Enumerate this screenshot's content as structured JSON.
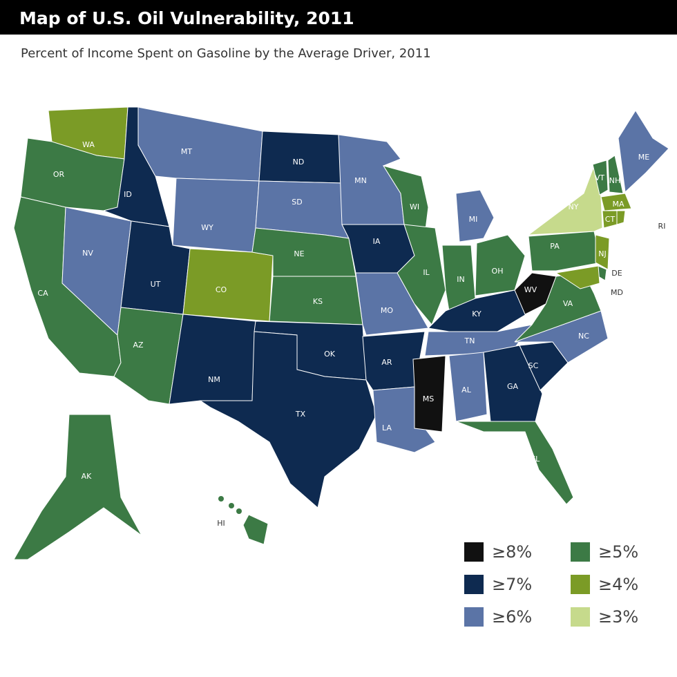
{
  "map": {
    "title": "Map of U.S. Oil Vulnerability, 2011",
    "subtitle": "Percent of Income Spent on Gasoline by the Average Driver, 2011",
    "legend": [
      {
        "label": "≥8%",
        "color": "#111111"
      },
      {
        "label": "≥7%",
        "color": "#0e2a50"
      },
      {
        "label": "≥6%",
        "color": "#5b74a6"
      },
      {
        "label": "≥5%",
        "color": "#3c7a45"
      },
      {
        "label": "≥4%",
        "color": "#7b9b26"
      },
      {
        "label": "≥3%",
        "color": "#c6da8c"
      }
    ],
    "states": [
      {
        "label": "WA",
        "color": "#7b9b26"
      },
      {
        "label": "OR",
        "color": "#3c7a45"
      },
      {
        "label": "CA",
        "color": "#3c7a45"
      },
      {
        "label": "ID",
        "color": "#0e2a50"
      },
      {
        "label": "NV",
        "color": "#5b74a6"
      },
      {
        "label": "MT",
        "color": "#5b74a6"
      },
      {
        "label": "WY",
        "color": "#5b74a6"
      },
      {
        "label": "UT",
        "color": "#0e2a50"
      },
      {
        "label": "AZ",
        "color": "#3c7a45"
      },
      {
        "label": "CO",
        "color": "#7b9b26"
      },
      {
        "label": "NM",
        "color": "#0e2a50"
      },
      {
        "label": "ND",
        "color": "#0e2a50"
      },
      {
        "label": "SD",
        "color": "#5b74a6"
      },
      {
        "label": "NE",
        "color": "#3c7a45"
      },
      {
        "label": "KS",
        "color": "#3c7a45"
      },
      {
        "label": "OK",
        "color": "#0e2a50"
      },
      {
        "label": "TX",
        "color": "#0e2a50"
      },
      {
        "label": "MN",
        "color": "#5b74a6"
      },
      {
        "label": "IA",
        "color": "#0e2a50"
      },
      {
        "label": "MO",
        "color": "#5b74a6"
      },
      {
        "label": "AR",
        "color": "#0e2a50"
      },
      {
        "label": "LA",
        "color": "#5b74a6"
      },
      {
        "label": "WI",
        "color": "#3c7a45"
      },
      {
        "label": "IL",
        "color": "#3c7a45"
      },
      {
        "label": "MI",
        "color": "#5b74a6"
      },
      {
        "label": "IN",
        "color": "#3c7a45"
      },
      {
        "label": "OH",
        "color": "#3c7a45"
      },
      {
        "label": "KY",
        "color": "#0e2a50"
      },
      {
        "label": "TN",
        "color": "#5b74a6"
      },
      {
        "label": "MS",
        "color": "#111111"
      },
      {
        "label": "AL",
        "color": "#5b74a6"
      },
      {
        "label": "GA",
        "color": "#0e2a50"
      },
      {
        "label": "SC",
        "color": "#0e2a50"
      },
      {
        "label": "NC",
        "color": "#5b74a6"
      },
      {
        "label": "VA",
        "color": "#3c7a45"
      },
      {
        "label": "WV",
        "color": "#111111"
      },
      {
        "label": "PA",
        "color": "#3c7a45"
      },
      {
        "label": "NY",
        "color": "#c6da8c"
      },
      {
        "label": "VT",
        "color": "#3c7a45"
      },
      {
        "label": "NH",
        "color": "#3c7a45"
      },
      {
        "label": "ME",
        "color": "#5b74a6"
      },
      {
        "label": "MA",
        "color": "#7b9b26"
      },
      {
        "label": "CT",
        "color": "#7b9b26"
      },
      {
        "label": "RI",
        "color": "#7b9b26"
      },
      {
        "label": "NJ",
        "color": "#7b9b26"
      },
      {
        "label": "DE",
        "color": "#3c7a45"
      },
      {
        "label": "MD",
        "color": "#7b9b26"
      },
      {
        "label": "FL",
        "color": "#3c7a45"
      },
      {
        "label": "AK",
        "color": "#3c7a45"
      },
      {
        "label": "HI",
        "color": "#3c7a45"
      }
    ]
  }
}
